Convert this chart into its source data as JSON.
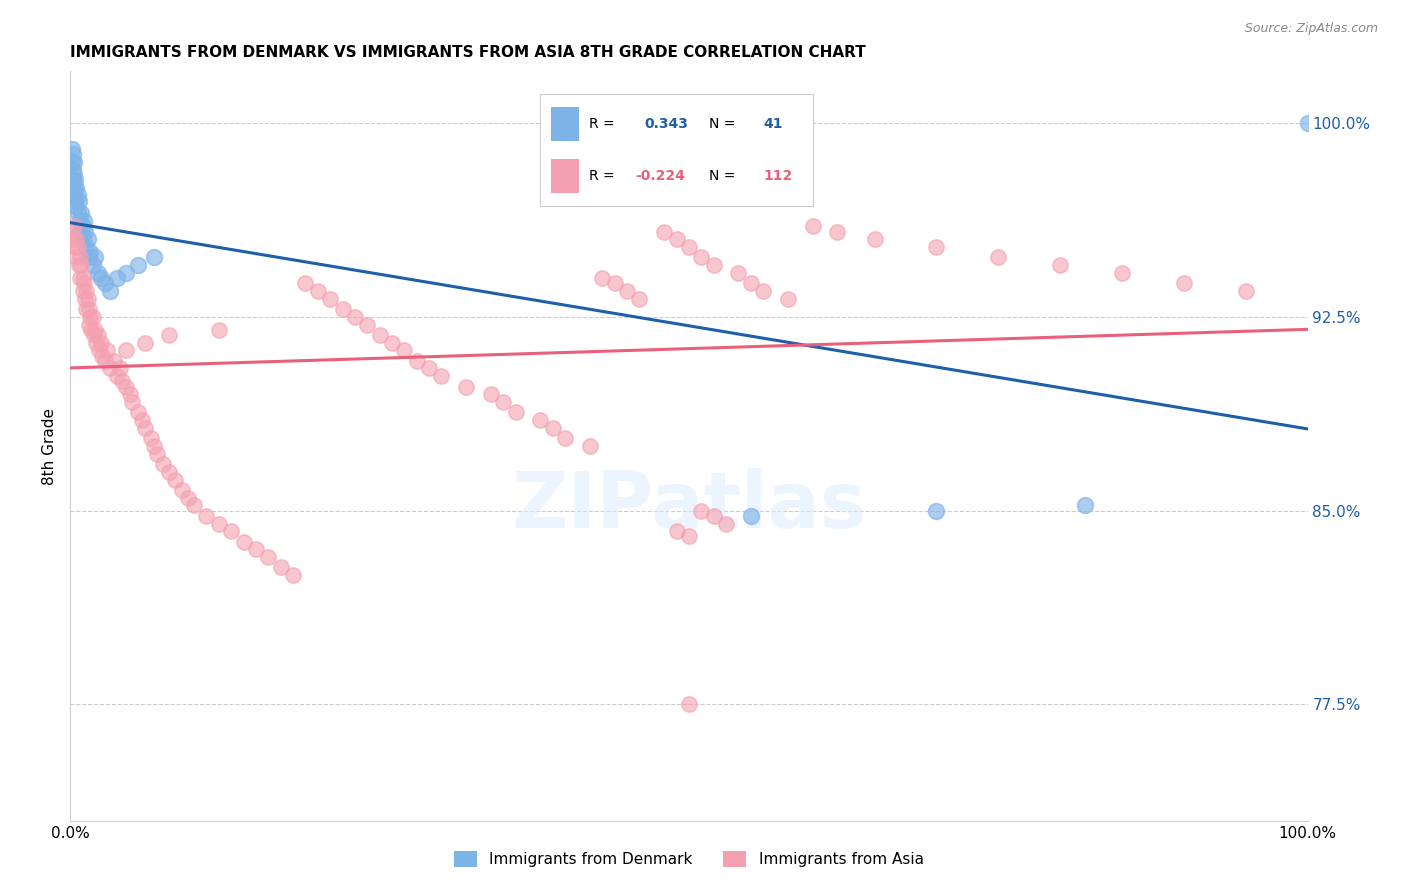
{
  "title": "IMMIGRANTS FROM DENMARK VS IMMIGRANTS FROM ASIA 8TH GRADE CORRELATION CHART",
  "source": "Source: ZipAtlas.com",
  "ylabel": "8th Grade",
  "blue_color": "#7EB3E8",
  "pink_color": "#F4A0B0",
  "blue_line_color": "#1E5FA8",
  "pink_line_color": "#E8607A",
  "blue_r": "0.343",
  "blue_n": "41",
  "pink_r": "-0.224",
  "pink_n": "112",
  "ytick_values": [
    0.775,
    0.85,
    0.925,
    1.0
  ],
  "ytick_labels": [
    "77.5%",
    "85.0%",
    "92.5%",
    "100.0%"
  ],
  "xlim": [
    0.0,
    1.0
  ],
  "ylim": [
    0.73,
    1.02
  ],
  "watermark": "ZIPatlas",
  "blue_x": [
    0.001,
    0.001,
    0.002,
    0.002,
    0.002,
    0.003,
    0.003,
    0.003,
    0.003,
    0.004,
    0.004,
    0.005,
    0.005,
    0.006,
    0.006,
    0.007,
    0.008,
    0.008,
    0.009,
    0.01,
    0.01,
    0.011,
    0.012,
    0.013,
    0.014,
    0.015,
    0.016,
    0.018,
    0.02,
    0.022,
    0.025,
    0.028,
    0.032,
    0.038,
    0.045,
    0.055,
    0.068,
    0.55,
    0.7,
    0.82,
    1.0
  ],
  "blue_y": [
    0.99,
    0.985,
    0.988,
    0.982,
    0.978,
    0.985,
    0.98,
    0.975,
    0.972,
    0.978,
    0.97,
    0.975,
    0.968,
    0.972,
    0.965,
    0.97,
    0.962,
    0.958,
    0.965,
    0.96,
    0.955,
    0.962,
    0.958,
    0.952,
    0.955,
    0.948,
    0.95,
    0.945,
    0.948,
    0.942,
    0.94,
    0.938,
    0.935,
    0.94,
    0.942,
    0.945,
    0.948,
    0.848,
    0.85,
    0.852,
    1.0
  ],
  "pink_x": [
    0.001,
    0.002,
    0.003,
    0.004,
    0.005,
    0.005,
    0.006,
    0.007,
    0.008,
    0.008,
    0.009,
    0.01,
    0.01,
    0.011,
    0.012,
    0.013,
    0.013,
    0.014,
    0.015,
    0.015,
    0.016,
    0.017,
    0.018,
    0.019,
    0.02,
    0.021,
    0.022,
    0.023,
    0.025,
    0.026,
    0.028,
    0.03,
    0.032,
    0.035,
    0.038,
    0.04,
    0.042,
    0.045,
    0.048,
    0.05,
    0.055,
    0.058,
    0.06,
    0.065,
    0.068,
    0.07,
    0.075,
    0.08,
    0.085,
    0.09,
    0.095,
    0.1,
    0.11,
    0.12,
    0.13,
    0.14,
    0.15,
    0.16,
    0.17,
    0.18,
    0.19,
    0.2,
    0.21,
    0.22,
    0.23,
    0.24,
    0.25,
    0.26,
    0.27,
    0.28,
    0.29,
    0.3,
    0.32,
    0.34,
    0.35,
    0.36,
    0.38,
    0.39,
    0.4,
    0.42,
    0.43,
    0.44,
    0.45,
    0.46,
    0.48,
    0.49,
    0.5,
    0.51,
    0.52,
    0.54,
    0.55,
    0.56,
    0.58,
    0.6,
    0.62,
    0.65,
    0.7,
    0.75,
    0.8,
    0.85,
    0.9,
    0.95,
    0.51,
    0.52,
    0.53,
    0.49,
    0.5,
    0.12,
    0.08,
    0.06,
    0.045,
    0.5
  ],
  "pink_y": [
    0.958,
    0.955,
    0.96,
    0.952,
    0.955,
    0.948,
    0.952,
    0.945,
    0.948,
    0.94,
    0.945,
    0.94,
    0.935,
    0.938,
    0.932,
    0.935,
    0.928,
    0.932,
    0.928,
    0.922,
    0.925,
    0.92,
    0.925,
    0.918,
    0.92,
    0.915,
    0.918,
    0.912,
    0.915,
    0.91,
    0.908,
    0.912,
    0.905,
    0.908,
    0.902,
    0.905,
    0.9,
    0.898,
    0.895,
    0.892,
    0.888,
    0.885,
    0.882,
    0.878,
    0.875,
    0.872,
    0.868,
    0.865,
    0.862,
    0.858,
    0.855,
    0.852,
    0.848,
    0.845,
    0.842,
    0.838,
    0.835,
    0.832,
    0.828,
    0.825,
    0.938,
    0.935,
    0.932,
    0.928,
    0.925,
    0.922,
    0.918,
    0.915,
    0.912,
    0.908,
    0.905,
    0.902,
    0.898,
    0.895,
    0.892,
    0.888,
    0.885,
    0.882,
    0.878,
    0.875,
    0.94,
    0.938,
    0.935,
    0.932,
    0.958,
    0.955,
    0.952,
    0.948,
    0.945,
    0.942,
    0.938,
    0.935,
    0.932,
    0.96,
    0.958,
    0.955,
    0.952,
    0.948,
    0.945,
    0.942,
    0.938,
    0.935,
    0.85,
    0.848,
    0.845,
    0.842,
    0.84,
    0.92,
    0.918,
    0.915,
    0.912,
    0.775
  ]
}
